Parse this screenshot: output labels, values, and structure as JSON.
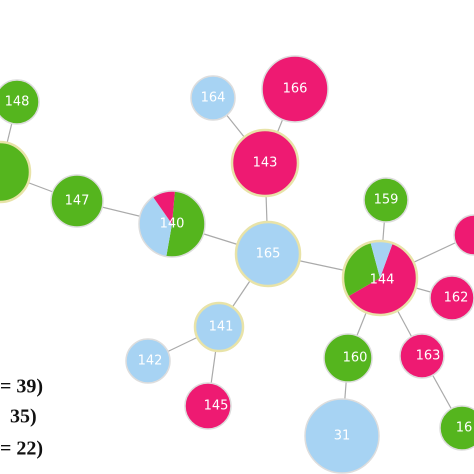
{
  "nodes": [
    {
      "label": "148"
    },
    {
      "label": "147"
    },
    {
      "label": "140"
    },
    {
      "label": "164"
    },
    {
      "label": "166"
    },
    {
      "label": "143"
    },
    {
      "label": "165"
    },
    {
      "label": "159"
    },
    {
      "label": "144"
    },
    {
      "label": "162"
    },
    {
      "label": "163"
    },
    {
      "label": "160"
    },
    {
      "label": "31"
    },
    {
      "label": "16"
    },
    {
      "label": "141"
    },
    {
      "label": "142"
    },
    {
      "label": "145"
    }
  ],
  "legend": [
    "= 39)",
    "35)",
    "= 22)"
  ]
}
